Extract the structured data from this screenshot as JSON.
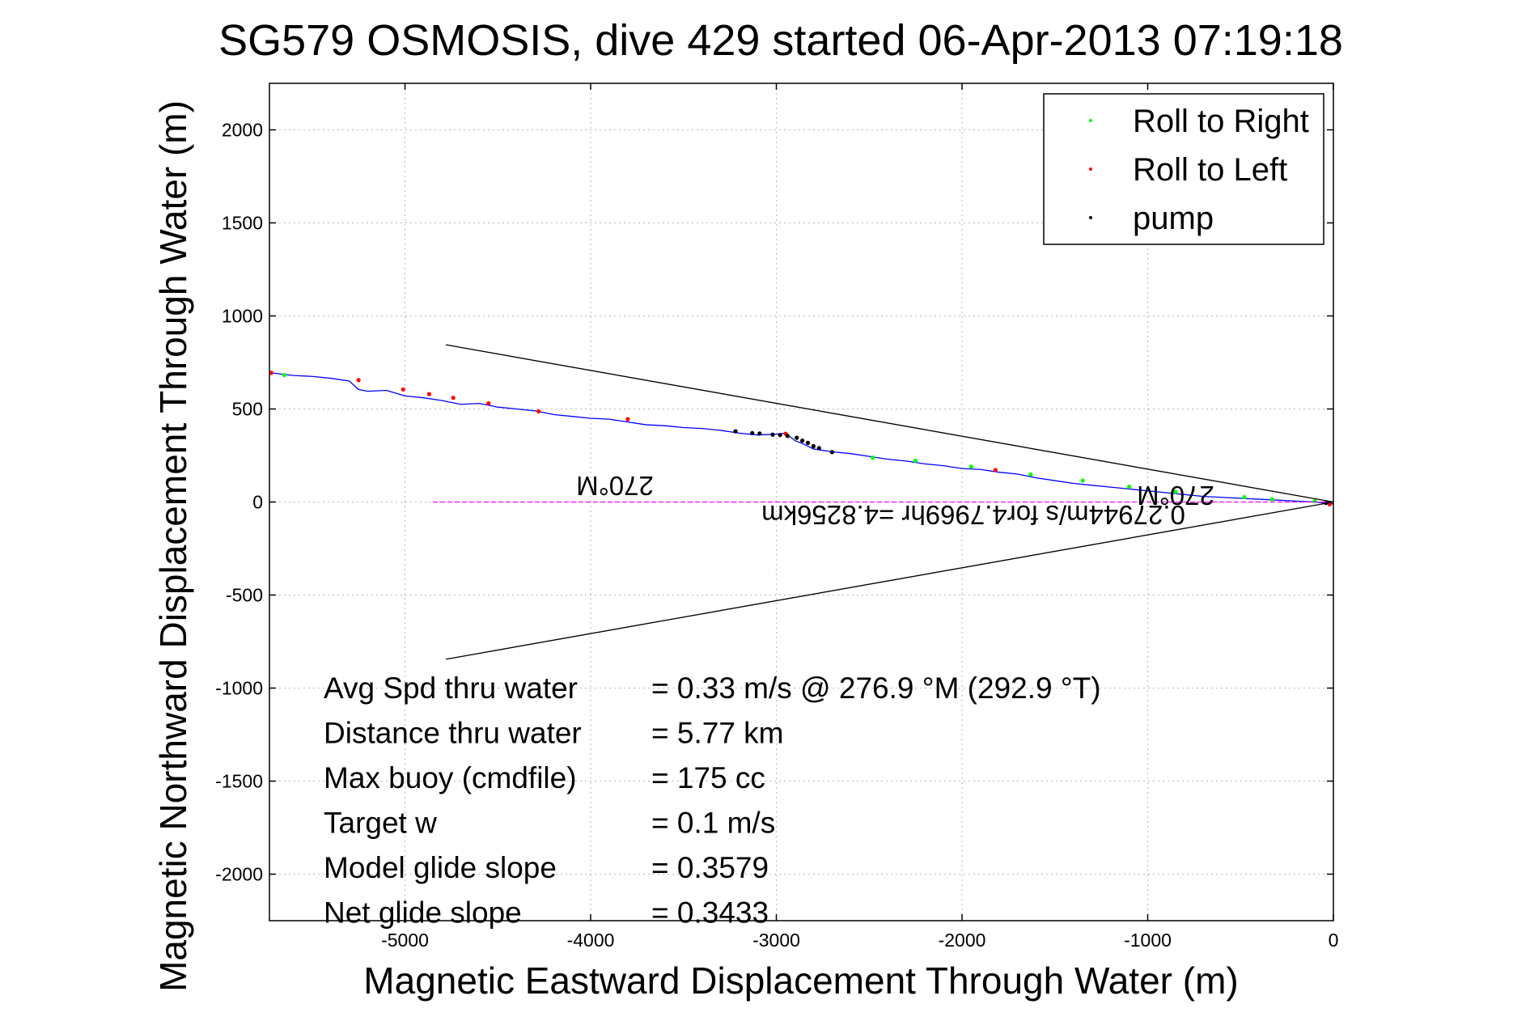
{
  "chart_data": {
    "type": "line",
    "title": "SG579 OSMOSIS, dive 429 started 06-Apr-2013 07:19:18",
    "xlabel": "Magnetic Eastward Displacement Through Water (m)",
    "ylabel": "Magnetic Northward Displacement Through Water (m)",
    "xlim": [
      -5730,
      0
    ],
    "ylim": [
      -2250,
      2250
    ],
    "xticks": [
      -5000,
      -4000,
      -3000,
      -2000,
      -1000,
      0
    ],
    "yticks": [
      -2000,
      -1500,
      -1000,
      -500,
      0,
      500,
      1000,
      1500,
      2000
    ],
    "grid": true,
    "legend": {
      "position": "top-right",
      "entries": [
        {
          "label": "Roll to Right",
          "color": "#00ff00"
        },
        {
          "label": "Roll to Left",
          "color": "#ff0000"
        },
        {
          "label": "pump",
          "color": "#000000"
        }
      ]
    },
    "series": [
      {
        "style": "line",
        "color": "#0000ff",
        "x": [
          -5730,
          -5600,
          -5500,
          -5400,
          -5300,
          -5250,
          -5200,
          -5100,
          -5000,
          -4900,
          -4800,
          -4700,
          -4600,
          -4500,
          -4400,
          -4300,
          -4200,
          -4100,
          -4000,
          -3900,
          -3800,
          -3700,
          -3600,
          -3500,
          -3400,
          -3300,
          -3200,
          -3100,
          -3000,
          -2950,
          -2900,
          -2850,
          -2800,
          -2700,
          -2600,
          -2500,
          -2400,
          -2300,
          -2200,
          -2100,
          -2000,
          -1900,
          -1800,
          -1700,
          -1600,
          -1500,
          -1400,
          -1300,
          -1200,
          -1100,
          -1000,
          -900,
          -800,
          -700,
          -600,
          -500,
          -400,
          -300,
          -200,
          -100,
          0
        ],
        "y": [
          695,
          680,
          675,
          665,
          650,
          605,
          595,
          600,
          570,
          560,
          545,
          525,
          530,
          510,
          500,
          490,
          470,
          460,
          450,
          445,
          430,
          415,
          410,
          400,
          395,
          385,
          370,
          360,
          365,
          370,
          330,
          310,
          285,
          270,
          260,
          245,
          230,
          220,
          205,
          195,
          180,
          175,
          160,
          150,
          130,
          115,
          100,
          90,
          80,
          70,
          60,
          50,
          40,
          30,
          25,
          20,
          15,
          10,
          5,
          0,
          -10
        ]
      },
      {
        "name": "Roll to Right",
        "style": "points",
        "color": "#00ff00",
        "x": [
          -5650,
          -2480,
          -2250,
          -1950,
          -1630,
          -1350,
          -1100,
          -850,
          -480,
          -330,
          -100
        ],
        "y": [
          682,
          238,
          222,
          190,
          148,
          115,
          82,
          55,
          26,
          15,
          4
        ]
      },
      {
        "name": "Roll to Left",
        "style": "points",
        "color": "#ff0000",
        "x": [
          -5720,
          -5250,
          -5010,
          -4870,
          -4740,
          -4550,
          -4280,
          -3800,
          -2950,
          -1820,
          -20
        ],
        "y": [
          694,
          655,
          605,
          580,
          560,
          530,
          487,
          445,
          367,
          172,
          -12
        ]
      },
      {
        "name": "pump",
        "style": "points",
        "color": "#000000",
        "x": [
          -3220,
          -3130,
          -3090,
          -3020,
          -2980,
          -2940,
          -2890,
          -2860,
          -2830,
          -2800,
          -2770,
          -2700,
          -40
        ],
        "y": [
          380,
          370,
          368,
          362,
          360,
          355,
          345,
          330,
          318,
          300,
          290,
          268,
          -5
        ]
      },
      {
        "style": "line",
        "color": "#000000",
        "x": [
          -4780,
          0
        ],
        "y": [
          845,
          0
        ]
      },
      {
        "style": "line",
        "color": "#000000",
        "x": [
          -4780,
          0
        ],
        "y": [
          -845,
          0
        ]
      },
      {
        "style": "line",
        "color": "#ff00ff",
        "x": [
          -4850,
          0
        ],
        "y": [
          0,
          0
        ]
      }
    ],
    "annotations": {
      "heading_left": "270°M",
      "heading_right": "270°M",
      "flight_text": "0.27944m/s for4.7969hr =4.8256km",
      "stats": [
        {
          "label": "Avg Spd thru water",
          "value": "=  0.33 m/s @ 276.9 °M (292.9 °T)"
        },
        {
          "label": "Distance thru water",
          "value": "=  5.77 km"
        },
        {
          "label": "Max buoy (cmdfile)",
          "value": "= 175 cc"
        },
        {
          "label": "Target w",
          "value": "= 0.1 m/s"
        },
        {
          "label": "Model glide slope",
          "value": "= 0.3579"
        },
        {
          "label": "Net glide slope",
          "value": "= 0.3433"
        }
      ]
    }
  }
}
